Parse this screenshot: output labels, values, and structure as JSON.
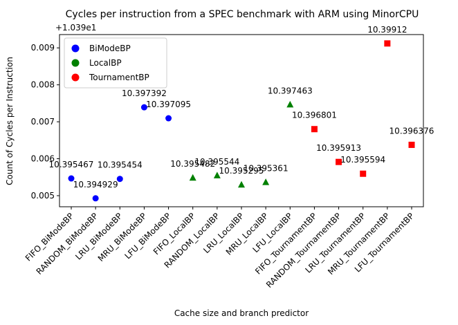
{
  "chart_data": {
    "type": "scatter",
    "title": "Cycles per instruction from a SPEC benchmark with ARM using MinorCPU",
    "xlabel": "Cache size and branch predictor",
    "ylabel": "Count of Cycles per Instruction",
    "offset_label": "+1.039e1",
    "offset_value": 10.39,
    "categories": [
      "FIFO_BiModeBP",
      "RANDOM_BiModeBP",
      "LRU_BiModeBP",
      "MRU_BiModeBP",
      "LFU_BiModeBP",
      "FIFO_LocalBP",
      "RANDOM_LocalBP",
      "LRU_LocalBP",
      "MRU_LocalBP",
      "LFU_LocalBP",
      "FIFO_TournamentBP",
      "RANDOM_TournamentBP",
      "LRU_TournamentBP",
      "MRU_TournamentBP",
      "LFU_TournamentBP"
    ],
    "yticks": [
      "0.005",
      "0.006",
      "0.007",
      "0.008",
      "0.009"
    ],
    "ylim": [
      10.3947,
      10.39936
    ],
    "legend_position": "top-left",
    "series": [
      {
        "name": "BiModeBP",
        "color": "#0000ff",
        "marker": "circle",
        "points": [
          {
            "x": 0,
            "y": 10.395467,
            "label": "10.395467"
          },
          {
            "x": 1,
            "y": 10.394929,
            "label": "10.394929"
          },
          {
            "x": 2,
            "y": 10.395454,
            "label": "10.395454"
          },
          {
            "x": 3,
            "y": 10.397392,
            "label": "10.397392"
          },
          {
            "x": 4,
            "y": 10.397095,
            "label": "10.397095"
          }
        ]
      },
      {
        "name": "LocalBP",
        "color": "#008000",
        "marker": "triangle",
        "points": [
          {
            "x": 5,
            "y": 10.395482,
            "label": "10.395482"
          },
          {
            "x": 6,
            "y": 10.395544,
            "label": "10.395544"
          },
          {
            "x": 7,
            "y": 10.395295,
            "label": "10.395295"
          },
          {
            "x": 8,
            "y": 10.395361,
            "label": "10.395361"
          },
          {
            "x": 9,
            "y": 10.397463,
            "label": "10.397463"
          }
        ]
      },
      {
        "name": "TournamentBP",
        "color": "#ff0000",
        "marker": "square",
        "points": [
          {
            "x": 10,
            "y": 10.396801,
            "label": "10.396801"
          },
          {
            "x": 11,
            "y": 10.395913,
            "label": "10.395913"
          },
          {
            "x": 12,
            "y": 10.395594,
            "label": "10.395594"
          },
          {
            "x": 13,
            "y": 10.39912,
            "label": "10.39912"
          },
          {
            "x": 14,
            "y": 10.396376,
            "label": "10.396376"
          }
        ]
      }
    ]
  }
}
